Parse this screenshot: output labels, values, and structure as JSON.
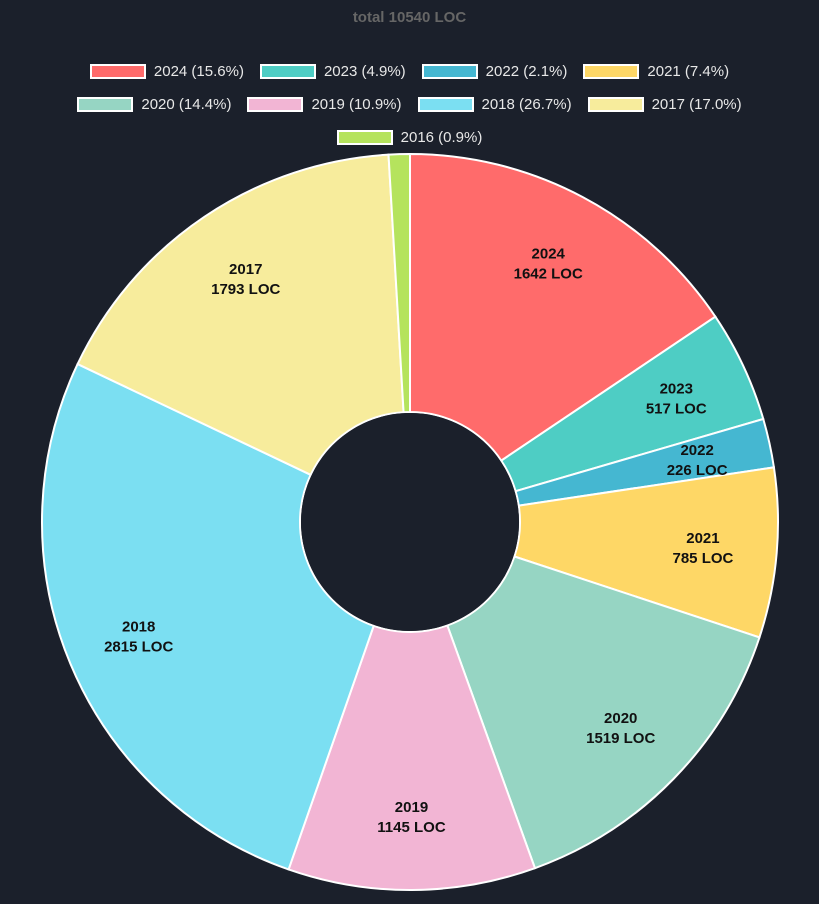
{
  "chart_data": {
    "type": "pie",
    "title": "total 10540 LOC",
    "legend_position": "top",
    "doughnut": true,
    "start": "top, clockwise",
    "slices": [
      {
        "label": "2024",
        "value": 1642,
        "percent_label": "2024 (15.6%)",
        "value_label": "1642 LOC",
        "color": "#ff6b6b"
      },
      {
        "label": "2023",
        "value": 517,
        "percent_label": "2023 (4.9%)",
        "value_label": "517 LOC",
        "color": "#4ecdc4"
      },
      {
        "label": "2022",
        "value": 226,
        "percent_label": "2022 (2.1%)",
        "value_label": "226 LOC",
        "color": "#45b7d1"
      },
      {
        "label": "2021",
        "value": 785,
        "percent_label": "2021 (7.4%)",
        "value_label": "785 LOC",
        "color": "#fed766"
      },
      {
        "label": "2020",
        "value": 1519,
        "percent_label": "2020 (14.4%)",
        "value_label": "1519 LOC",
        "color": "#96d5c3"
      },
      {
        "label": "2019",
        "value": 1145,
        "percent_label": "2019 (10.9%)",
        "value_label": "1145 LOC",
        "color": "#f2b5d4"
      },
      {
        "label": "2018",
        "value": 2815,
        "percent_label": "2018 (26.7%)",
        "value_label": "2815 LOC",
        "color": "#7bdff2"
      },
      {
        "label": "2017",
        "value": 1793,
        "percent_label": "2017 (17.0%)",
        "value_label": "1793 LOC",
        "color": "#f7ec9c"
      },
      {
        "label": "2016",
        "value": 98,
        "percent_label": "2016 (0.9%)",
        "value_label": "",
        "color": "#b5e35d"
      }
    ]
  }
}
